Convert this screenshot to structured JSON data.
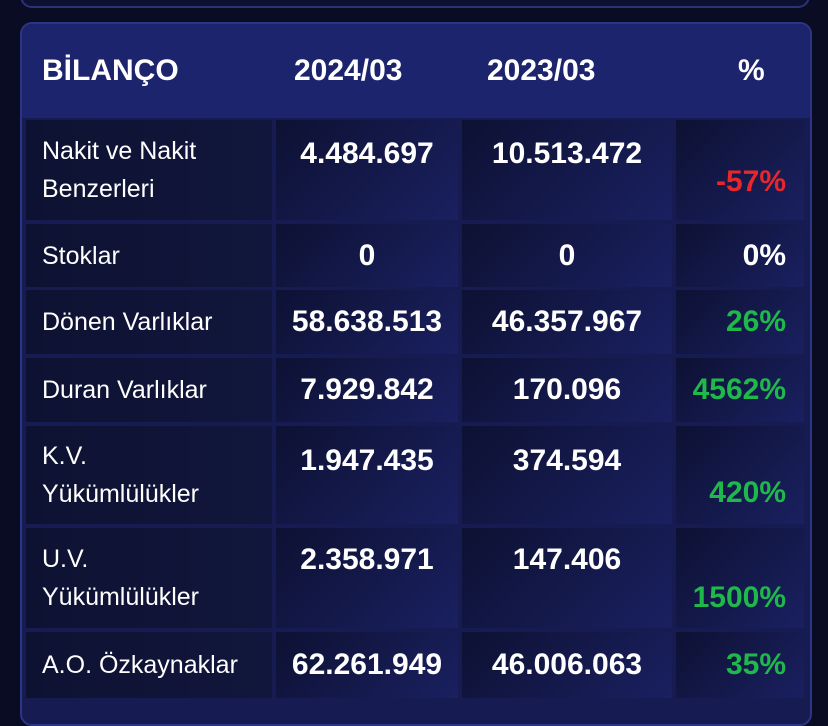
{
  "table": {
    "header": [
      "BİLANÇO",
      "2024/03",
      "2023/03",
      "%"
    ],
    "rows": [
      [
        "Nakit ve Nakit Benzerleri",
        "4.484.697",
        "10.513.472",
        "-57%"
      ],
      [
        "Stoklar",
        "0",
        "0",
        "0%"
      ],
      [
        "Dönen Varlıklar",
        "58.638.513",
        "46.357.967",
        "26%"
      ],
      [
        "Duran Varlıklar",
        "7.929.842",
        "170.096",
        "4562%"
      ],
      [
        "K.V. Yükümlülükler",
        "1.947.435",
        "374.594",
        "420%"
      ],
      [
        "U.V. Yükümlülükler",
        "2.358.971",
        "147.406",
        "1500%"
      ],
      [
        "A.O. Özkaynaklar",
        "62.261.949",
        "46.006.063",
        "35%"
      ]
    ]
  }
}
